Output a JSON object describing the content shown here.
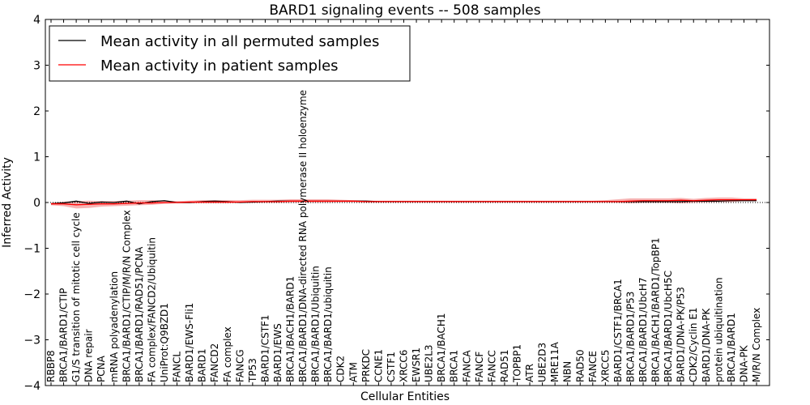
{
  "chart_data": {
    "type": "line",
    "title": "BARD1 signaling events -- 508 samples",
    "xlabel": "Cellular Entities",
    "ylabel": "Inferred Activity",
    "ylim": [
      -4,
      4
    ],
    "yticks": [
      -4,
      -3,
      -2,
      -1,
      0,
      1,
      2,
      3,
      4
    ],
    "ytick_labels": [
      "−4",
      "−3",
      "−2",
      "−1",
      "0",
      "1",
      "2",
      "3",
      "4"
    ],
    "legend": {
      "position": "top-left",
      "entries": [
        {
          "label": "Mean activity in all permuted samples",
          "color": "#000000"
        },
        {
          "label": "Mean activity in patient samples",
          "color": "#ff0000"
        }
      ]
    },
    "colors": {
      "permuted": "#000000",
      "patient": "#ff0000",
      "band": "#f08080",
      "zero_line": "#000000"
    },
    "categories": [
      "RBBP8",
      "BRCA1/BARD1/CTIP",
      "G1/S transition of mitotic cell cycle",
      "DNA repair",
      "PCNA",
      "mRNA polyadenylation",
      "BRCA1/BARD1/CTIP/M/R/N Complex",
      "BRCA1/BARD1/RAD51/PCNA",
      "FA complex/FANCD2/Ubiquitin",
      "UniProt:Q9BZD1",
      "FANCL",
      "BARD1/EWS-Fli1",
      "BARD1",
      "FANCD2",
      "FA complex",
      "FANCG",
      "TP53",
      "BARD1/CSTF1",
      "BARD1/EWS",
      "BRCA1/BACH1/BARD1",
      "BRCA1/BARD1/DNA-directed RNA polymerase II holoenzyme",
      "BRCA1/BARD1/Ubiquitin",
      "BRCA1/BARD1/ubiquitin",
      "CDK2",
      "ATM",
      "PRKDC",
      "CCNE1",
      "CSTF1",
      "XRCC6",
      "EWSR1",
      "UBE2L3",
      "BRCA1/BACH1",
      "BRCA1",
      "FANCA",
      "FANCF",
      "FANCC",
      "RAD51",
      "TOPBP1",
      "ATR",
      "UBE2D3",
      "MRE11A",
      "NBN",
      "RAD50",
      "FANCE",
      "XRCC5",
      "BARD1/CSTF1/BRCA1",
      "BRCA1/BARD1/P53",
      "BRCA1/BARD1/UbcH7",
      "BRCA1/BACH1/BARD1/TopBP1",
      "BRCA1/BARD1/UbcH5C",
      "BARD1/DNA-PK/P53",
      "CDK2/Cyclin E1",
      "BARD1/DNA-PK",
      "protein ubiquitination",
      "BRCA1/BARD1",
      "DNA-PK",
      "M/R/N Complex"
    ],
    "series": [
      {
        "name": "Mean activity in all permuted samples",
        "values": [
          -0.03,
          -0.01,
          0.03,
          -0.02,
          0.01,
          0.0,
          0.03,
          -0.03,
          0.02,
          0.04,
          0.0,
          0.0,
          0.02,
          0.03,
          0.02,
          0.0,
          0.01,
          0.02,
          0.03,
          0.03,
          0.03,
          0.03,
          0.03,
          0.03,
          0.03,
          0.03,
          0.02,
          0.02,
          0.02,
          0.02,
          0.02,
          0.02,
          0.02,
          0.02,
          0.02,
          0.02,
          0.02,
          0.02,
          0.02,
          0.02,
          0.02,
          0.02,
          0.02,
          0.02,
          0.02,
          0.02,
          0.02,
          0.02,
          0.02,
          0.02,
          0.02,
          0.03,
          0.03,
          0.03,
          0.04,
          0.04,
          0.04
        ]
      },
      {
        "name": "Mean activity in patient samples",
        "values": [
          -0.03,
          -0.03,
          -0.05,
          -0.04,
          -0.03,
          -0.03,
          -0.02,
          -0.01,
          -0.01,
          0.0,
          0.0,
          0.01,
          0.01,
          0.01,
          0.01,
          0.01,
          0.02,
          0.02,
          0.02,
          0.03,
          0.03,
          0.03,
          0.03,
          0.03,
          0.03,
          0.02,
          0.02,
          0.02,
          0.02,
          0.02,
          0.02,
          0.02,
          0.02,
          0.02,
          0.02,
          0.02,
          0.02,
          0.02,
          0.02,
          0.02,
          0.02,
          0.02,
          0.02,
          0.02,
          0.02,
          0.02,
          0.03,
          0.04,
          0.04,
          0.04,
          0.05,
          0.04,
          0.05,
          0.06,
          0.06,
          0.06,
          0.06
        ]
      }
    ],
    "band": {
      "upper": [
        0.0,
        0.02,
        0.03,
        0.04,
        0.03,
        0.03,
        0.04,
        0.05,
        0.05,
        0.04,
        0.03,
        0.04,
        0.05,
        0.05,
        0.05,
        0.05,
        0.06,
        0.06,
        0.06,
        0.07,
        0.07,
        0.07,
        0.07,
        0.06,
        0.05,
        0.04,
        0.04,
        0.04,
        0.04,
        0.04,
        0.04,
        0.04,
        0.04,
        0.04,
        0.04,
        0.04,
        0.04,
        0.04,
        0.04,
        0.04,
        0.04,
        0.04,
        0.04,
        0.04,
        0.05,
        0.07,
        0.09,
        0.09,
        0.09,
        0.09,
        0.1,
        0.08,
        0.1,
        0.11,
        0.11,
        0.09,
        0.09
      ],
      "lower": [
        -0.06,
        -0.08,
        -0.13,
        -0.12,
        -0.09,
        -0.08,
        -0.07,
        -0.06,
        -0.05,
        -0.03,
        -0.02,
        -0.02,
        -0.02,
        -0.02,
        -0.02,
        -0.01,
        -0.01,
        -0.01,
        -0.01,
        -0.01,
        -0.01,
        -0.01,
        -0.01,
        0.0,
        0.0,
        0.0,
        0.0,
        0.0,
        0.0,
        0.0,
        0.0,
        0.0,
        0.0,
        0.0,
        0.0,
        0.0,
        0.0,
        0.0,
        0.0,
        0.0,
        0.0,
        0.0,
        0.0,
        0.0,
        0.0,
        -0.01,
        -0.02,
        -0.01,
        -0.01,
        -0.01,
        -0.02,
        -0.01,
        0.0,
        0.01,
        0.01,
        0.03,
        0.03
      ]
    }
  }
}
